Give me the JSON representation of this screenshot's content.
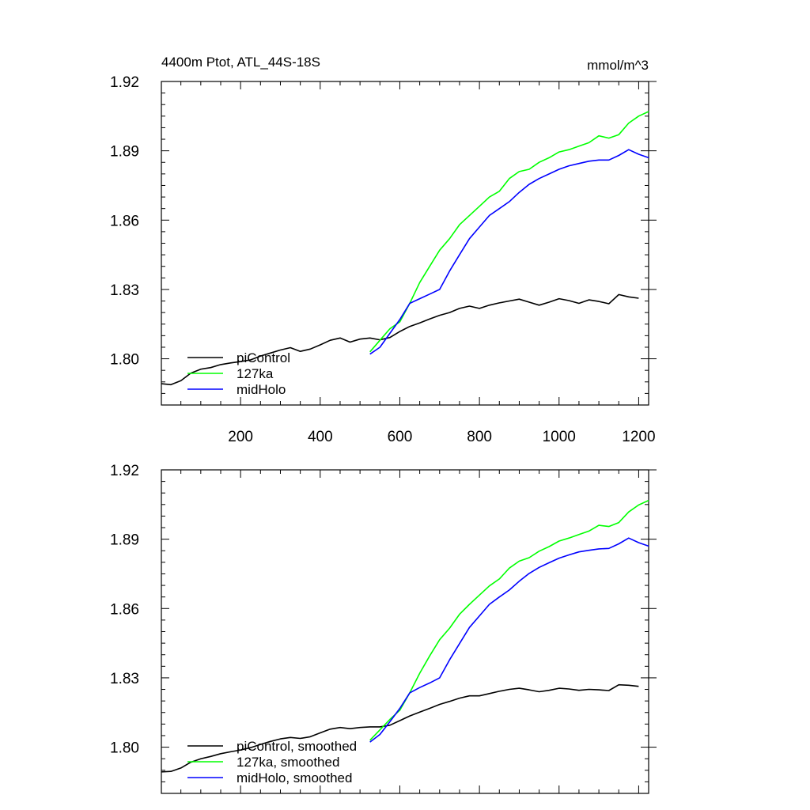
{
  "figure": {
    "title": "4400m Ptot, ATL_44S-18S",
    "units": "mmol/m^3"
  },
  "chart_data": [
    {
      "type": "line",
      "title": "4400m Ptot, ATL_44S-18S",
      "units_label": "mmol/m^3",
      "xlabel": "",
      "ylabel": "",
      "xlim": [
        1,
        1225
      ],
      "ylim": [
        1.78,
        1.92
      ],
      "x_ticks": [
        200,
        400,
        600,
        800,
        1000,
        1200
      ],
      "y_ticks": [
        1.8,
        1.83,
        1.86,
        1.89,
        1.92
      ],
      "y_tick_labels": [
        "1.80",
        "1.83",
        "1.86",
        "1.89",
        "1.92"
      ],
      "show_x_tick_labels": true,
      "legend_position": "bottom-left",
      "series": [
        {
          "name": "piControl",
          "color": "#000000",
          "x": [
            1,
            25,
            50,
            75,
            100,
            125,
            150,
            175,
            200,
            225,
            250,
            275,
            300,
            325,
            350,
            375,
            400,
            425,
            450,
            475,
            500,
            525,
            550,
            575,
            600,
            625,
            650,
            675,
            700,
            725,
            750,
            775,
            800,
            825,
            850,
            875,
            900,
            925,
            950,
            975,
            1000,
            1025,
            1050,
            1075,
            1100,
            1125,
            1150,
            1175,
            1200
          ],
          "y": [
            1.7892,
            1.7888,
            1.7905,
            1.7938,
            1.7955,
            1.7962,
            1.7975,
            1.7982,
            1.7988,
            1.7995,
            1.8012,
            1.8025,
            1.8038,
            1.8048,
            1.8032,
            1.8042,
            1.806,
            1.808,
            1.809,
            1.8072,
            1.8085,
            1.809,
            1.8082,
            1.8092,
            1.8118,
            1.814,
            1.8155,
            1.8172,
            1.8188,
            1.82,
            1.8218,
            1.8228,
            1.8218,
            1.8232,
            1.8242,
            1.825,
            1.8258,
            1.8245,
            1.8232,
            1.8245,
            1.826,
            1.8252,
            1.824,
            1.8255,
            1.8248,
            1.8238,
            1.8278,
            1.8268,
            1.8262
          ]
        },
        {
          "name": "127ka",
          "color": "#00ff00",
          "x": [
            525,
            550,
            575,
            600,
            625,
            650,
            675,
            700,
            725,
            750,
            775,
            800,
            825,
            850,
            875,
            900,
            925,
            950,
            975,
            1000,
            1025,
            1050,
            1075,
            1100,
            1125,
            1150,
            1175,
            1200,
            1225
          ],
          "y": [
            1.803,
            1.808,
            1.813,
            1.816,
            1.824,
            1.833,
            1.84,
            1.847,
            1.852,
            1.858,
            1.862,
            1.866,
            1.87,
            1.8725,
            1.878,
            1.881,
            1.882,
            1.885,
            1.887,
            1.8895,
            1.8905,
            1.892,
            1.8935,
            1.8965,
            1.8955,
            1.897,
            1.902,
            1.905,
            1.907
          ]
        },
        {
          "name": "midHolo",
          "color": "#0000ff",
          "x": [
            525,
            550,
            575,
            600,
            625,
            650,
            675,
            700,
            725,
            750,
            775,
            800,
            825,
            850,
            875,
            900,
            925,
            950,
            975,
            1000,
            1025,
            1050,
            1075,
            1100,
            1125,
            1150,
            1175,
            1200,
            1225
          ],
          "y": [
            1.802,
            1.805,
            1.811,
            1.817,
            1.824,
            1.826,
            1.828,
            1.83,
            1.838,
            1.845,
            1.852,
            1.857,
            1.862,
            1.865,
            1.868,
            1.872,
            1.8755,
            1.878,
            1.88,
            1.882,
            1.8835,
            1.8845,
            1.8855,
            1.886,
            1.886,
            1.888,
            1.8905,
            1.8885,
            1.887
          ]
        }
      ]
    },
    {
      "type": "line",
      "title": "",
      "xlabel": "",
      "ylabel": "",
      "xlim": [
        1,
        1225
      ],
      "ylim": [
        1.78,
        1.92
      ],
      "x_ticks": [
        200,
        400,
        600,
        800,
        1000,
        1200
      ],
      "y_ticks": [
        1.8,
        1.83,
        1.86,
        1.89,
        1.92
      ],
      "y_tick_labels": [
        "1.80",
        "1.83",
        "1.86",
        "1.89",
        "1.92"
      ],
      "show_x_tick_labels": false,
      "legend_position": "bottom-left",
      "series": [
        {
          "name": "piControl, smoothed",
          "color": "#000000",
          "x": [
            1,
            25,
            50,
            75,
            100,
            125,
            150,
            175,
            200,
            225,
            250,
            275,
            300,
            325,
            350,
            375,
            400,
            425,
            450,
            475,
            500,
            525,
            550,
            575,
            600,
            625,
            650,
            675,
            700,
            725,
            750,
            775,
            800,
            825,
            850,
            875,
            900,
            925,
            950,
            975,
            1000,
            1025,
            1050,
            1075,
            1100,
            1125,
            1150,
            1175,
            1200
          ],
          "y": [
            1.7893,
            1.7895,
            1.791,
            1.7935,
            1.795,
            1.796,
            1.7972,
            1.798,
            1.7988,
            1.7998,
            1.8012,
            1.8025,
            1.8036,
            1.8042,
            1.8038,
            1.8045,
            1.8062,
            1.8078,
            1.8085,
            1.808,
            1.8085,
            1.8088,
            1.8088,
            1.8095,
            1.8115,
            1.8135,
            1.8152,
            1.8168,
            1.8185,
            1.8198,
            1.8212,
            1.8222,
            1.8222,
            1.8232,
            1.8242,
            1.825,
            1.8255,
            1.8248,
            1.824,
            1.8246,
            1.8255,
            1.8252,
            1.8246,
            1.825,
            1.8248,
            1.8245,
            1.827,
            1.8268,
            1.8263
          ]
        },
        {
          "name": "127ka, smoothed",
          "color": "#00ff00",
          "x": [
            525,
            550,
            575,
            600,
            625,
            650,
            675,
            700,
            725,
            750,
            775,
            800,
            825,
            850,
            875,
            900,
            925,
            950,
            975,
            1000,
            1025,
            1050,
            1075,
            1100,
            1125,
            1150,
            1175,
            1200,
            1225
          ],
          "y": [
            1.803,
            1.8075,
            1.812,
            1.816,
            1.8235,
            1.832,
            1.8395,
            1.8465,
            1.8515,
            1.8575,
            1.8618,
            1.8658,
            1.8698,
            1.8728,
            1.8775,
            1.8805,
            1.882,
            1.8848,
            1.8868,
            1.8892,
            1.8905,
            1.892,
            1.8935,
            1.896,
            1.8955,
            1.8972,
            1.9018,
            1.9048,
            1.9068
          ]
        },
        {
          "name": "midHolo, smoothed",
          "color": "#0000ff",
          "x": [
            525,
            550,
            575,
            600,
            625,
            650,
            675,
            700,
            725,
            750,
            775,
            800,
            825,
            850,
            875,
            900,
            925,
            950,
            975,
            1000,
            1025,
            1050,
            1075,
            1100,
            1125,
            1150,
            1175,
            1200,
            1225
          ],
          "y": [
            1.8022,
            1.8055,
            1.811,
            1.8168,
            1.8235,
            1.8258,
            1.8278,
            1.83,
            1.8378,
            1.8448,
            1.8518,
            1.8568,
            1.8618,
            1.865,
            1.868,
            1.8718,
            1.8752,
            1.8778,
            1.8798,
            1.8818,
            1.8832,
            1.8845,
            1.8852,
            1.8858,
            1.886,
            1.888,
            1.8905,
            1.8885,
            1.887
          ]
        }
      ]
    }
  ]
}
